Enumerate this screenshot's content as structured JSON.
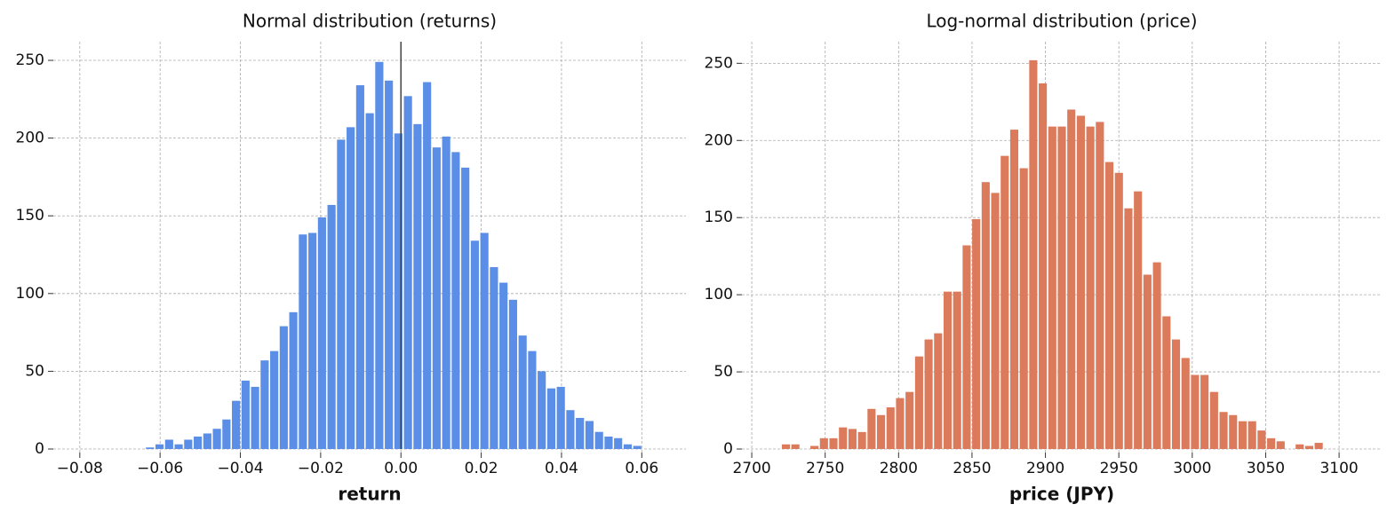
{
  "chart_data": [
    {
      "type": "histogram",
      "title": "Normal distribution (returns)",
      "xlabel": "return",
      "color": "#5b8ee6",
      "bins": [
        -0.0637,
        -0.06132,
        -0.05894,
        -0.05656,
        -0.05418,
        -0.0518,
        -0.04942,
        -0.04704,
        -0.04466,
        -0.04228,
        -0.0399,
        -0.03752,
        -0.03514,
        -0.03276,
        -0.03038,
        -0.028,
        -0.02562,
        -0.02324,
        -0.02086,
        -0.01848,
        -0.0161,
        -0.01372,
        -0.01134,
        -0.00896,
        -0.00658,
        -0.0042,
        -0.00182,
        0.00056,
        0.00294,
        0.00532,
        0.0077,
        0.01008,
        0.01246,
        0.01484,
        0.01722,
        0.0196,
        0.02198,
        0.02436,
        0.02674,
        0.02912,
        0.0315,
        0.03388,
        0.03626,
        0.03864,
        0.04102,
        0.0434,
        0.04578,
        0.04816,
        0.05054,
        0.05292,
        0.0553,
        0.05768,
        0.06006
      ],
      "values": [
        1,
        3,
        6,
        3,
        6,
        8,
        10,
        13,
        19,
        31,
        44,
        40,
        57,
        63,
        79,
        88,
        138,
        139,
        149,
        157,
        199,
        207,
        234,
        216,
        249,
        237,
        203,
        227,
        209,
        236,
        194,
        201,
        191,
        181,
        134,
        139,
        117,
        107,
        96,
        73,
        63,
        50,
        39,
        40,
        25,
        20,
        18,
        11,
        8,
        7,
        3,
        2
      ],
      "vline": 0,
      "xlim": [
        -0.0866,
        0.071
      ],
      "ylim": [
        0,
        262
      ],
      "xticks": [
        {
          "value": -0.08,
          "label": "−0.08"
        },
        {
          "value": -0.06,
          "label": "−0.06"
        },
        {
          "value": -0.04,
          "label": "−0.04"
        },
        {
          "value": -0.02,
          "label": "−0.02"
        },
        {
          "value": 0,
          "label": "0.00"
        },
        {
          "value": 0.02,
          "label": "0.02"
        },
        {
          "value": 0.04,
          "label": "0.04"
        },
        {
          "value": 0.06,
          "label": "0.06"
        }
      ],
      "yticks": [
        0,
        50,
        100,
        150,
        200,
        250
      ],
      "grid": true
    },
    {
      "type": "histogram",
      "title": "Log-normal distribution (price)",
      "xlabel": "price (JPY)",
      "color": "#dc7a5c",
      "bins": [
        2720,
        2726.48,
        2732.96,
        2739.44,
        2745.92,
        2752.4,
        2758.88,
        2765.36,
        2771.84,
        2778.32,
        2784.8,
        2791.28,
        2797.76,
        2804.24,
        2810.72,
        2817.2,
        2823.68,
        2830.16,
        2836.64,
        2843.12,
        2849.6,
        2856.08,
        2862.56,
        2869.04,
        2875.52,
        2882,
        2888.48,
        2894.96,
        2901.44,
        2907.92,
        2914.4,
        2920.88,
        2927.36,
        2933.84,
        2940.32,
        2946.8,
        2953.28,
        2959.76,
        2966.24,
        2972.72,
        2979.2,
        2985.68,
        2992.16,
        2998.64,
        3005.12,
        3011.6,
        3018.08,
        3024.56,
        3031.04,
        3037.52,
        3044,
        3050.48,
        3056.96,
        3063.44,
        3069.92,
        3076.4,
        3082.88,
        3089.36
      ],
      "values": [
        3,
        3,
        0,
        2,
        7,
        7,
        14,
        13,
        11,
        26,
        22,
        27,
        33,
        37,
        60,
        71,
        75,
        102,
        102,
        132,
        149,
        173,
        166,
        190,
        207,
        182,
        252,
        237,
        209,
        209,
        220,
        216,
        209,
        212,
        186,
        179,
        156,
        167,
        113,
        121,
        86,
        71,
        59,
        48,
        48,
        37,
        24,
        22,
        18,
        18,
        12,
        7,
        5,
        0,
        3,
        2,
        4
      ],
      "xlim": [
        2693.3,
        3129
      ],
      "ylim": [
        0,
        264
      ],
      "xticks": [
        2700,
        2750,
        2800,
        2850,
        2900,
        2950,
        3000,
        3050,
        3100
      ],
      "yticks": [
        0,
        50,
        100,
        150,
        200,
        250
      ],
      "grid": true
    }
  ]
}
